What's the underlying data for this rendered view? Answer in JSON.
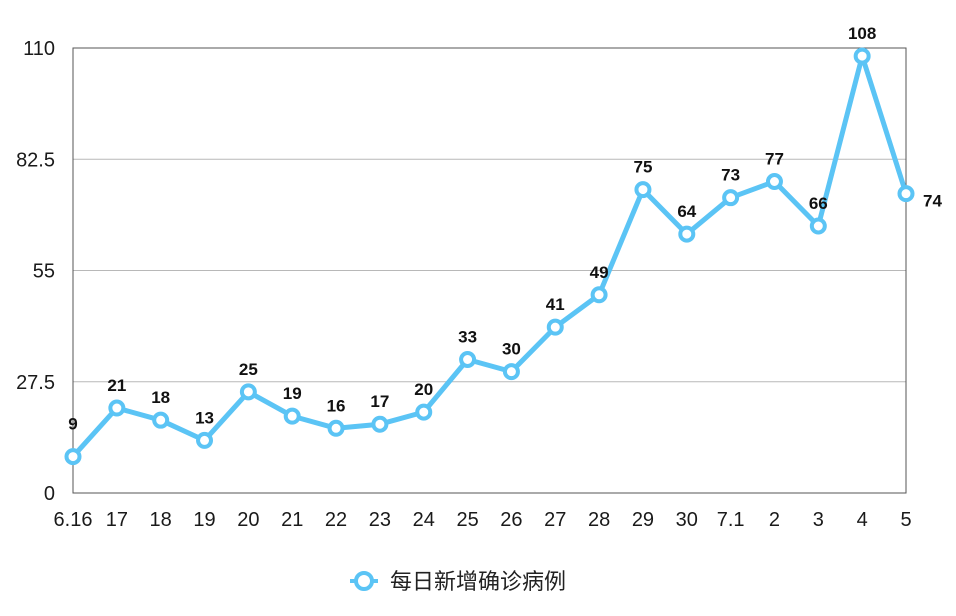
{
  "chart_data": {
    "type": "line",
    "title": "",
    "xlabel": "",
    "ylabel": "",
    "ylim": [
      0,
      110
    ],
    "yticks": [
      "0",
      "27.5",
      "55",
      "82.5",
      "110"
    ],
    "ytick_values": [
      0,
      27.5,
      55,
      82.5,
      110
    ],
    "categories": [
      "6.16",
      "17",
      "18",
      "19",
      "20",
      "21",
      "22",
      "23",
      "24",
      "25",
      "26",
      "27",
      "28",
      "29",
      "30",
      "7.1",
      "2",
      "3",
      "4",
      "5"
    ],
    "series": [
      {
        "name": "每日新增确诊病例",
        "color": "#5bc4f5",
        "values": [
          9,
          21,
          18,
          13,
          25,
          19,
          16,
          17,
          20,
          33,
          30,
          41,
          49,
          75,
          64,
          73,
          77,
          66,
          108,
          74
        ],
        "labels": [
          "9",
          "21",
          "18",
          "13",
          "25",
          "19",
          "16",
          "17",
          "20",
          "33",
          "30",
          "41",
          "49",
          "75",
          "64",
          "73",
          "77",
          "66",
          "108",
          "74"
        ]
      }
    ],
    "highlight": {
      "index": 18,
      "color": "#c0392b"
    },
    "grid": true,
    "legend": "bottom-center"
  }
}
